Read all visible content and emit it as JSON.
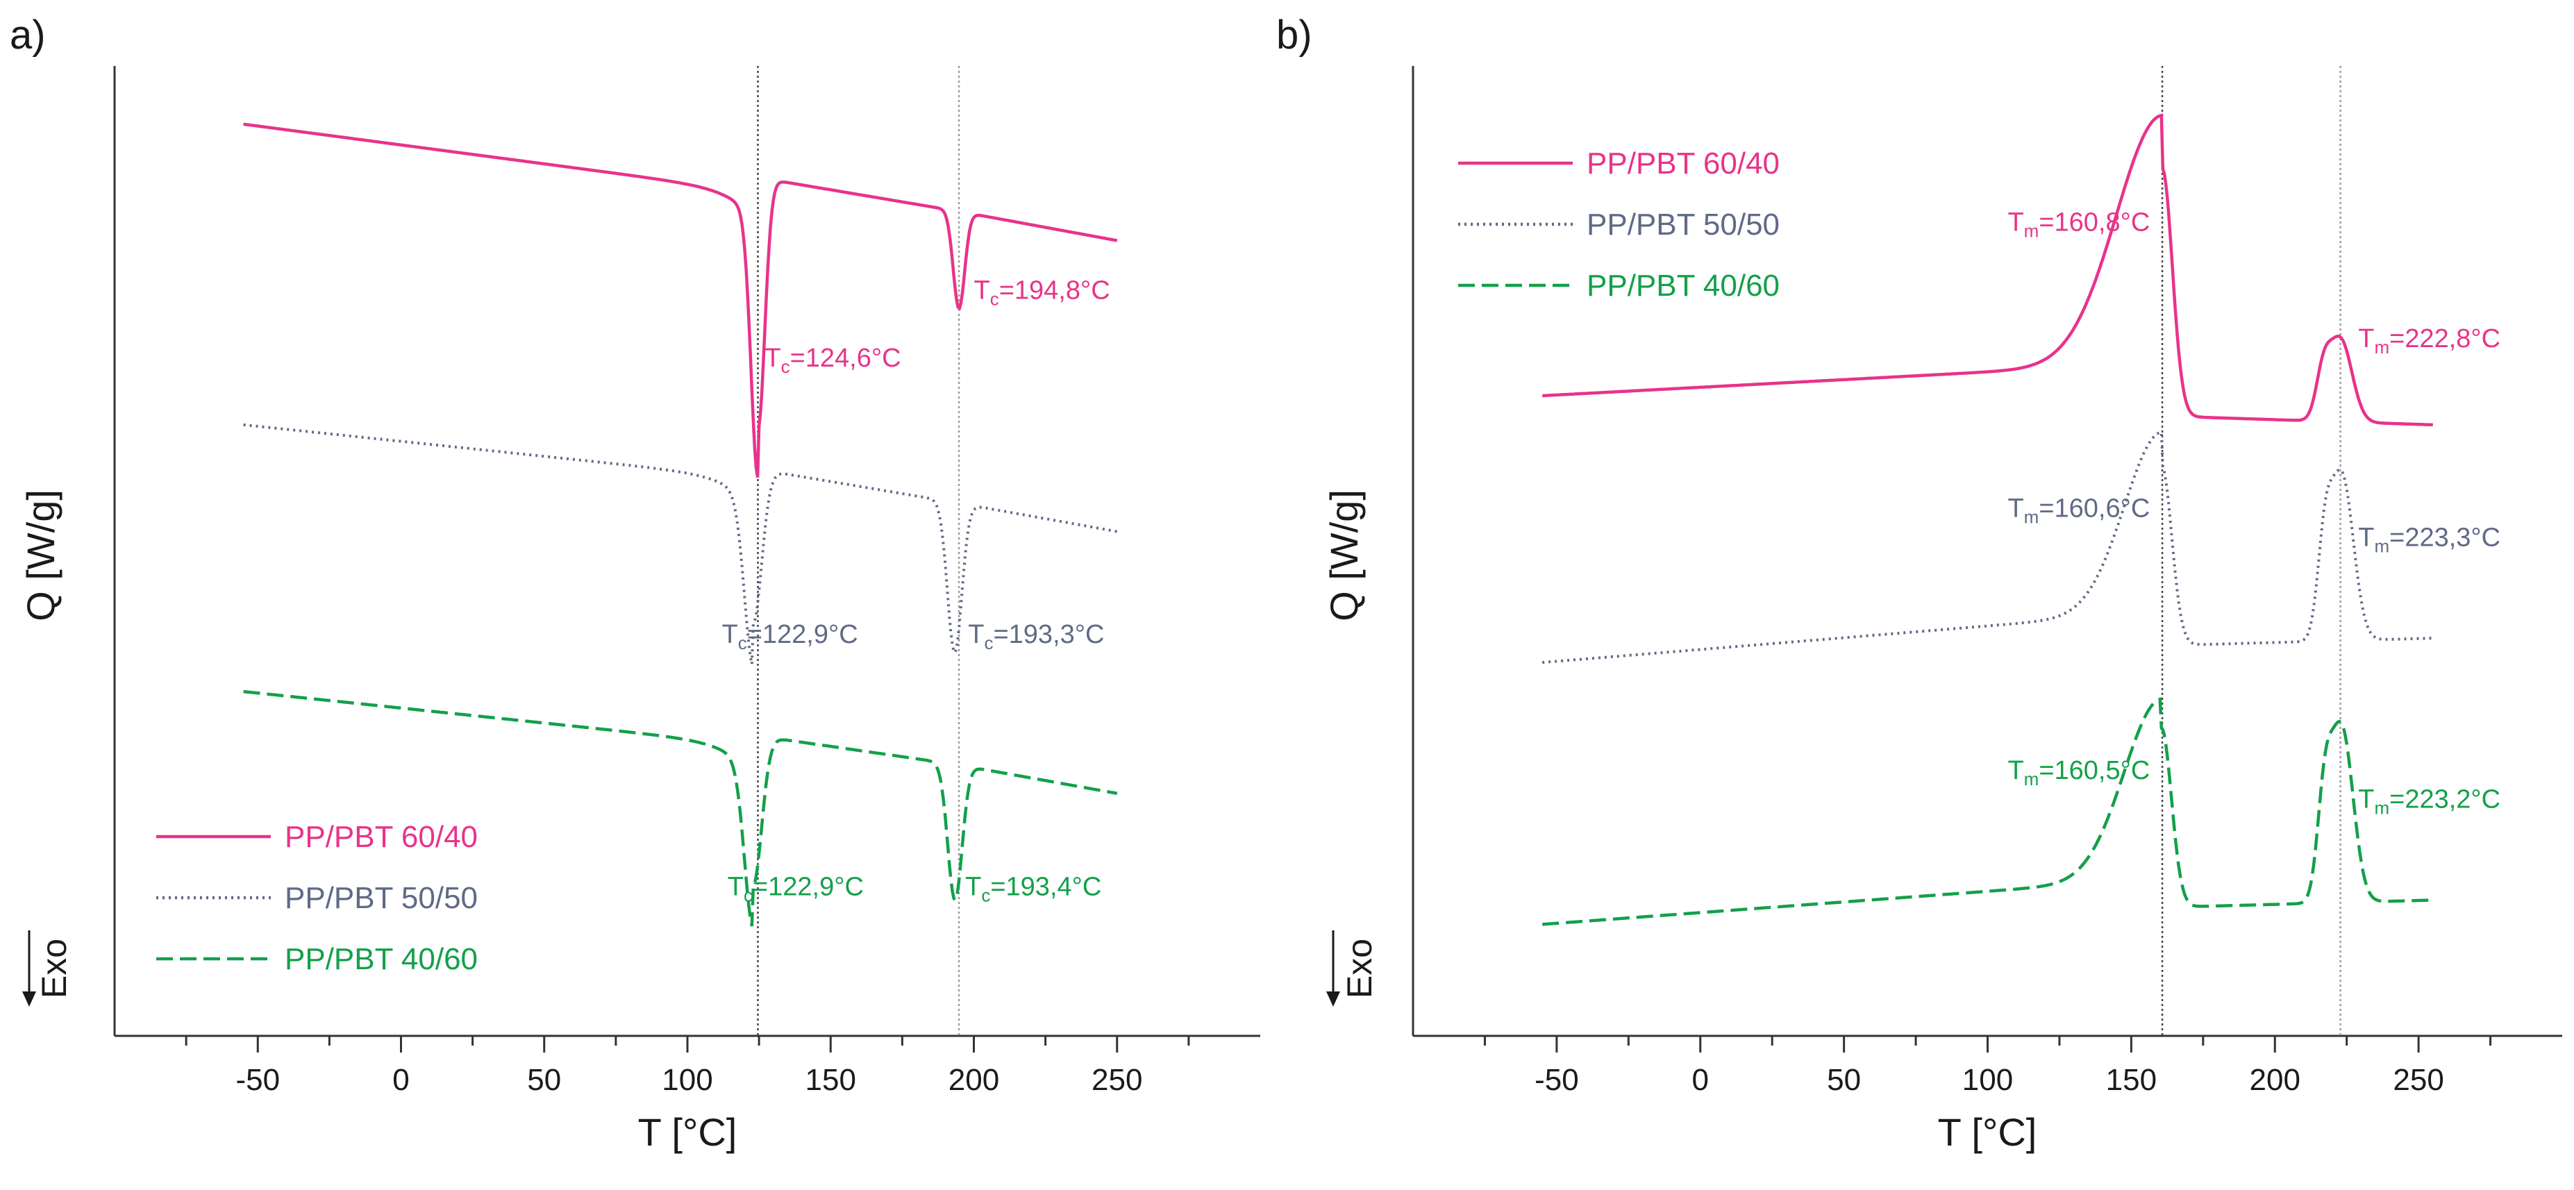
{
  "chart_data": [
    {
      "id": "a",
      "panel_label": "a)",
      "type": "line",
      "title": "",
      "xlabel": "T [°C]",
      "ylabel": "Q [W/g]",
      "exo_label": "Exo",
      "xlim": [
        -100,
        300
      ],
      "ylim": [
        0,
        10
      ],
      "xticks": [
        -50,
        0,
        50,
        100,
        150,
        200,
        250
      ],
      "xtick_labels": [
        "-50",
        "0",
        "50",
        "100",
        "150",
        "200",
        "250"
      ],
      "x_range": [
        -55,
        250
      ],
      "reference_lines": [
        124.6,
        194.8
      ],
      "series": [
        {
          "name": "PP/PBT 60/40",
          "color": "#e8338a",
          "dash": "solid",
          "start": 9.4,
          "end": 8.2,
          "shoulder": 8.7,
          "after_peak1": 8.85,
          "after_peak2": 8.5,
          "peaks": [
            {
              "x": 124.6,
              "depth": 2.6,
              "width": 2.4
            },
            {
              "x": 194.8,
              "depth": 1.0,
              "width": 2.0
            }
          ],
          "annotations": [
            {
              "label": "T",
              "sub": "c",
              "value": "=124,6°C",
              "x": 127,
              "y": 6.9
            },
            {
              "label": "T",
              "sub": "c",
              "value": "=194,8°C",
              "x": 200,
              "y": 7.6
            }
          ]
        },
        {
          "name": "PP/PBT 50/50",
          "color": "#5f6a86",
          "dash": "dotted",
          "start": 6.3,
          "end": 5.2,
          "shoulder": 5.75,
          "after_peak1": 5.85,
          "after_peak2": 5.5,
          "peaks": [
            {
              "x": 122.9,
              "depth": 1.6,
              "width": 3.0
            },
            {
              "x": 193.3,
              "depth": 1.55,
              "width": 2.5
            }
          ],
          "annotations": [
            {
              "label": "T",
              "sub": "c",
              "value": "=122,9°C",
              "x": 112,
              "y": 4.05
            },
            {
              "label": "T",
              "sub": "c",
              "value": "=193,3°C",
              "x": 198,
              "y": 4.05
            }
          ]
        },
        {
          "name": "PP/PBT 40/60",
          "color": "#13a04a",
          "dash": "dashed",
          "start": 3.55,
          "end": 2.5,
          "shoulder": 3.0,
          "after_peak1": 3.1,
          "after_peak2": 2.8,
          "peaks": [
            {
              "x": 122.9,
              "depth": 1.55,
              "width": 3.0
            },
            {
              "x": 193.4,
              "depth": 1.4,
              "width": 2.5
            }
          ],
          "annotations": [
            {
              "label": "T",
              "sub": "c",
              "value": "=122,9°C",
              "x": 114,
              "y": 1.45
            },
            {
              "label": "T",
              "sub": "c",
              "value": "=193,4°C",
              "x": 197,
              "y": 1.45
            }
          ]
        }
      ],
      "legend": {
        "position": "bottom-left",
        "entries": [
          "PP/PBT 60/40",
          "PP/PBT 50/50",
          "PP/PBT 40/60"
        ]
      }
    },
    {
      "id": "b",
      "panel_label": "b)",
      "type": "line",
      "title": "",
      "xlabel": "T [°C]",
      "ylabel": "Q [W/g]",
      "exo_label": "Exo",
      "xlim": [
        -100,
        300
      ],
      "ylim": [
        0,
        10
      ],
      "xticks": [
        -50,
        0,
        50,
        100,
        150,
        200,
        250
      ],
      "xtick_labels": [
        "-50",
        "0",
        "50",
        "100",
        "150",
        "200",
        "250"
      ],
      "x_range": [
        -55,
        255
      ],
      "reference_lines": [
        160.8,
        222.8
      ],
      "series": [
        {
          "name": "PP/PBT 60/40",
          "color": "#e8338a",
          "dash": "solid",
          "base": 6.6,
          "base_end": 6.3,
          "ramp": 0.55,
          "peaks": [
            {
              "x": 160.8,
              "height": 2.55,
              "width": 16
            },
            {
              "x": 222.8,
              "height": 0.85,
              "width": 4
            }
          ],
          "annotations": [
            {
              "label": "T",
              "sub": "m",
              "value": "=160,8°C",
              "x": 107,
              "y": 8.3
            },
            {
              "label": "T",
              "sub": "m",
              "value": "=222,8°C",
              "x": 229,
              "y": 7.1
            }
          ]
        },
        {
          "name": "PP/PBT 50/50",
          "color": "#5f6a86",
          "dash": "dotted",
          "base": 3.85,
          "base_end": 4.1,
          "ramp": 0.35,
          "peaks": [
            {
              "x": 160.6,
              "height": 1.85,
              "width": 13
            },
            {
              "x": 223.3,
              "height": 1.7,
              "width": 4
            }
          ],
          "annotations": [
            {
              "label": "T",
              "sub": "m",
              "value": "=160,6°C",
              "x": 107,
              "y": 5.35
            },
            {
              "label": "T",
              "sub": "m",
              "value": "=223,3°C",
              "x": 229,
              "y": 5.05
            }
          ]
        },
        {
          "name": "PP/PBT 40/60",
          "color": "#13a04a",
          "dash": "dashed",
          "base": 1.15,
          "base_end": 1.4,
          "ramp": 0.3,
          "peaks": [
            {
              "x": 160.5,
              "height": 1.85,
              "width": 13
            },
            {
              "x": 223.2,
              "height": 1.8,
              "width": 4
            }
          ],
          "annotations": [
            {
              "label": "T",
              "sub": "m",
              "value": "=160,5°C",
              "x": 107,
              "y": 2.65
            },
            {
              "label": "T",
              "sub": "m",
              "value": "=223,2°C",
              "x": 229,
              "y": 2.35
            }
          ]
        }
      ],
      "legend": {
        "position": "top-left",
        "entries": [
          "PP/PBT 60/40",
          "PP/PBT 50/50",
          "PP/PBT 40/60"
        ]
      }
    }
  ]
}
